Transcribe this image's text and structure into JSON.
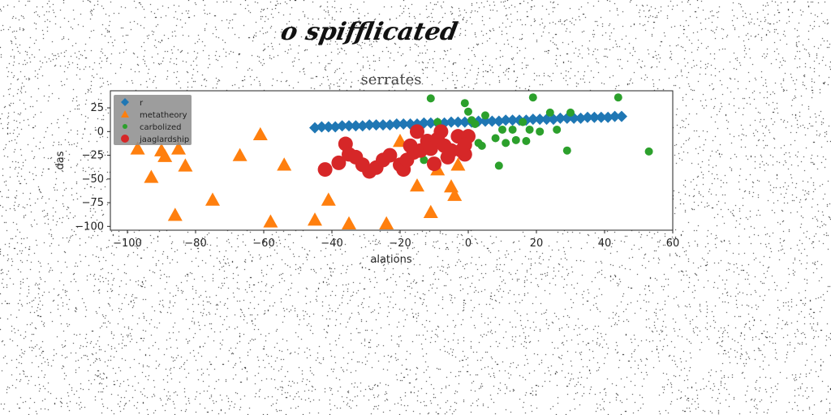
{
  "page": {
    "heading": "o spifflicated"
  },
  "chart_data": {
    "type": "scatter",
    "title": "serrates",
    "xlabel": "alations",
    "ylabel": "das",
    "xlim": [
      -105,
      60
    ],
    "ylim": [
      -104,
      43
    ],
    "xticks": [
      -100,
      -80,
      -60,
      -40,
      -20,
      0,
      20,
      40,
      60
    ],
    "xtick_labels": [
      "−100",
      "−80",
      "−60",
      "−40",
      "−20",
      "0",
      "20",
      "40",
      "60"
    ],
    "yticks": [
      25,
      0,
      -25,
      -50,
      -75,
      -100
    ],
    "ytick_labels": [
      "25",
      "0",
      "−25",
      "−50",
      "−75",
      "−100"
    ],
    "grid": false,
    "legend_position": "top-left",
    "series": [
      {
        "name": "r",
        "marker": "diamond",
        "color": "#1f77b4",
        "points": [
          [
            -45,
            4
          ],
          [
            -43,
            5
          ],
          [
            -41,
            5
          ],
          [
            -39,
            5
          ],
          [
            -37,
            6
          ],
          [
            -35,
            6
          ],
          [
            -33,
            6
          ],
          [
            -31,
            6
          ],
          [
            -29,
            7
          ],
          [
            -27,
            7
          ],
          [
            -25,
            7
          ],
          [
            -23,
            7
          ],
          [
            -21,
            8
          ],
          [
            -19,
            8
          ],
          [
            -17,
            8
          ],
          [
            -15,
            8
          ],
          [
            -13,
            9
          ],
          [
            -11,
            9
          ],
          [
            -9,
            9
          ],
          [
            -7,
            9
          ],
          [
            -5,
            10
          ],
          [
            -3,
            10
          ],
          [
            -1,
            10
          ],
          [
            1,
            10
          ],
          [
            3,
            11
          ],
          [
            5,
            11
          ],
          [
            7,
            11
          ],
          [
            9,
            11
          ],
          [
            11,
            12
          ],
          [
            13,
            12
          ],
          [
            15,
            12
          ],
          [
            17,
            12
          ],
          [
            19,
            13
          ],
          [
            21,
            13
          ],
          [
            23,
            13
          ],
          [
            25,
            13
          ],
          [
            27,
            14
          ],
          [
            29,
            14
          ],
          [
            31,
            14
          ],
          [
            33,
            14
          ],
          [
            35,
            15
          ],
          [
            37,
            15
          ],
          [
            39,
            15
          ],
          [
            41,
            15
          ],
          [
            43,
            16
          ],
          [
            45,
            16
          ]
        ]
      },
      {
        "name": "metatheory",
        "marker": "triangle",
        "color": "#ff7f0e",
        "points": [
          [
            -97,
            -18
          ],
          [
            -90,
            -20
          ],
          [
            -85,
            -18
          ],
          [
            -89,
            -26
          ],
          [
            -93,
            -48
          ],
          [
            -83,
            -36
          ],
          [
            -67,
            -25
          ],
          [
            -61,
            -3
          ],
          [
            -54,
            -35
          ],
          [
            -75,
            -72
          ],
          [
            -86,
            -88
          ],
          [
            -58,
            -95
          ],
          [
            -45,
            -93
          ],
          [
            -41,
            -72
          ],
          [
            -35,
            -97
          ],
          [
            -24,
            -97
          ],
          [
            -20,
            -10
          ],
          [
            -15,
            -57
          ],
          [
            -11,
            -85
          ],
          [
            -9,
            -40
          ],
          [
            -5,
            -58
          ],
          [
            -4,
            -67
          ],
          [
            -3,
            -35
          ]
        ]
      },
      {
        "name": "carbolized",
        "marker": "circle",
        "color": "#2ca02c",
        "points": [
          [
            -11,
            35
          ],
          [
            -9,
            10
          ],
          [
            -1,
            30
          ],
          [
            0,
            21
          ],
          [
            1,
            12
          ],
          [
            2,
            8
          ],
          [
            5,
            17
          ],
          [
            10,
            2
          ],
          [
            13,
            2
          ],
          [
            16,
            10
          ],
          [
            18,
            2
          ],
          [
            19,
            36
          ],
          [
            14,
            -9
          ],
          [
            8,
            -7
          ],
          [
            11,
            -12
          ],
          [
            4,
            -15
          ],
          [
            17,
            -10
          ],
          [
            9,
            -36
          ],
          [
            21,
            0
          ],
          [
            24,
            20
          ],
          [
            26,
            2
          ],
          [
            29,
            -20
          ],
          [
            30,
            20
          ],
          [
            44,
            36
          ],
          [
            53,
            -21
          ],
          [
            -13,
            -30
          ],
          [
            -7,
            -27
          ],
          [
            -5,
            -22
          ],
          [
            3,
            -12
          ]
        ]
      },
      {
        "name": "jaaglardship",
        "marker": "circle",
        "color": "#d62728",
        "points": [
          [
            -42,
            -40
          ],
          [
            -38,
            -33
          ],
          [
            -36,
            -13
          ],
          [
            -35,
            -24
          ],
          [
            -33,
            -27
          ],
          [
            -31,
            -35
          ],
          [
            -29,
            -42
          ],
          [
            -27,
            -38
          ],
          [
            -25,
            -30
          ],
          [
            -23,
            -25
          ],
          [
            -20,
            -35
          ],
          [
            -19,
            -40
          ],
          [
            -18,
            -30
          ],
          [
            -17,
            -15
          ],
          [
            -16,
            -22
          ],
          [
            -15,
            0
          ],
          [
            -14,
            -20
          ],
          [
            -12,
            -10
          ],
          [
            -11,
            -18
          ],
          [
            -10,
            -34
          ],
          [
            -9,
            -8
          ],
          [
            -8,
            0
          ],
          [
            -7,
            -15
          ],
          [
            -6,
            -27
          ],
          [
            -5,
            -20
          ],
          [
            -3,
            -5
          ],
          [
            -2,
            -20
          ],
          [
            -1,
            -24
          ],
          [
            0,
            -5
          ],
          [
            -1,
            -14
          ]
        ]
      }
    ]
  }
}
